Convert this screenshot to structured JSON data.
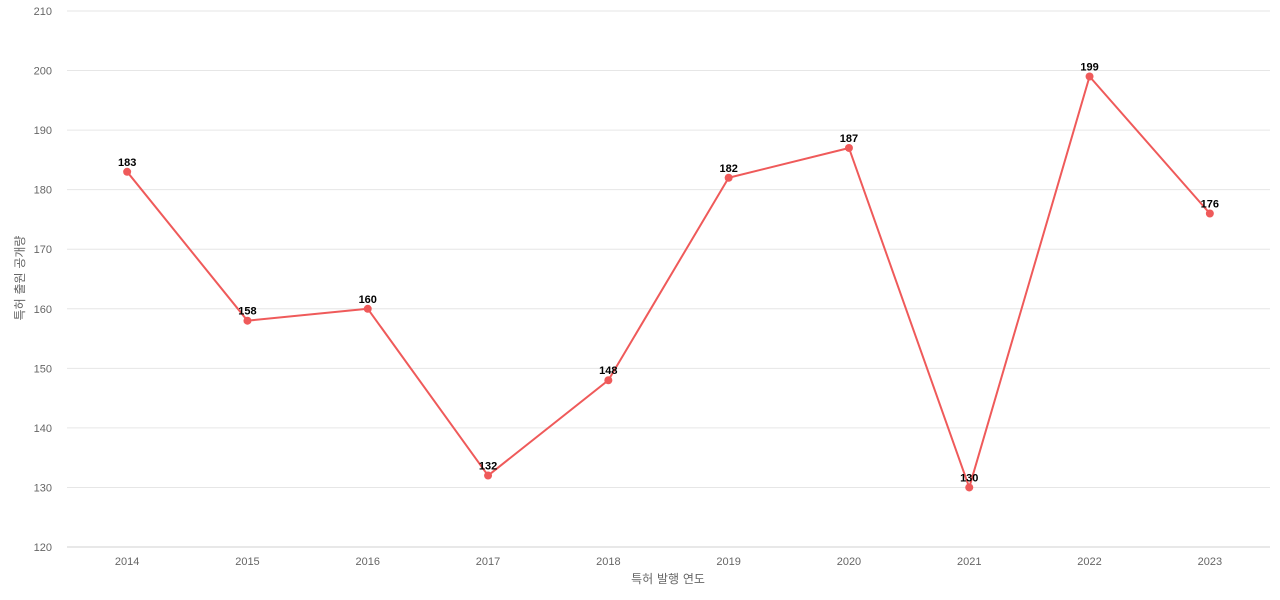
{
  "chart_data": {
    "type": "line",
    "title": "",
    "xlabel": "특허 발행 연도",
    "ylabel": "특허 출원 공개량",
    "categories": [
      "2014",
      "2015",
      "2016",
      "2017",
      "2018",
      "2019",
      "2020",
      "2021",
      "2022",
      "2023"
    ],
    "series": [
      {
        "values": [
          183,
          158,
          160,
          132,
          148,
          182,
          187,
          130,
          199,
          176
        ],
        "color": "#ef5a5a"
      }
    ],
    "ylim": [
      120,
      210
    ],
    "yticks": [
      120,
      130,
      140,
      150,
      160,
      170,
      180,
      190,
      200,
      210
    ],
    "grid": true,
    "legend": "none",
    "data_labels": true
  }
}
